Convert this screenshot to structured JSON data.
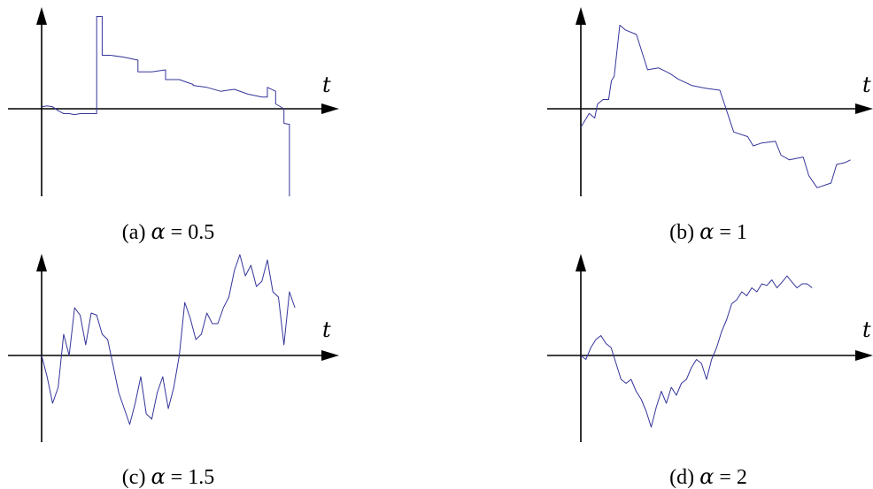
{
  "chart_data": [
    {
      "type": "line",
      "panel_label": "(a)",
      "alpha_symbol": "α",
      "alpha_value": "= 0.5",
      "xlabel": "t",
      "xlim": [
        0,
        1
      ],
      "ylim": [
        -1,
        1
      ],
      "x": [
        0,
        0.02,
        0.04,
        0.06,
        0.08,
        0.1,
        0.12,
        0.14,
        0.16,
        0.18,
        0.195,
        0.2,
        0.2,
        0.21,
        0.22,
        0.22,
        0.25,
        0.3,
        0.35,
        0.35,
        0.4,
        0.45,
        0.45,
        0.5,
        0.55,
        0.55,
        0.6,
        0.65,
        0.7,
        0.75,
        0.8,
        0.82,
        0.82,
        0.85,
        0.85,
        0.88,
        0.88,
        0.9,
        0.9
      ],
      "values": [
        0.02,
        0.03,
        0.02,
        -0.02,
        -0.05,
        -0.05,
        -0.06,
        -0.05,
        -0.05,
        -0.05,
        -0.05,
        -0.05,
        0.95,
        0.95,
        0.95,
        0.55,
        0.55,
        0.53,
        0.5,
        0.38,
        0.38,
        0.4,
        0.3,
        0.3,
        0.25,
        0.24,
        0.22,
        0.18,
        0.2,
        0.15,
        0.12,
        0.12,
        0.22,
        0.18,
        0.05,
        0.0,
        -0.15,
        -0.16,
        -0.9
      ]
    },
    {
      "type": "line",
      "panel_label": "(b)",
      "alpha_symbol": "α",
      "alpha_value": "= 1",
      "xlabel": "t",
      "xlim": [
        0,
        1
      ],
      "ylim": [
        -1,
        1
      ],
      "x": [
        0,
        0.02,
        0.03,
        0.05,
        0.06,
        0.08,
        0.1,
        0.11,
        0.12,
        0.14,
        0.16,
        0.2,
        0.24,
        0.28,
        0.32,
        0.35,
        0.4,
        0.45,
        0.5,
        0.52,
        0.55,
        0.6,
        0.62,
        0.65,
        0.7,
        0.72,
        0.75,
        0.8,
        0.82,
        0.85,
        0.9,
        0.92,
        0.95,
        0.97
      ],
      "values": [
        -0.2,
        -0.1,
        -0.05,
        -0.1,
        0.05,
        0.1,
        0.1,
        0.3,
        0.35,
        0.9,
        0.85,
        0.8,
        0.42,
        0.44,
        0.38,
        0.32,
        0.25,
        0.22,
        0.2,
        0.02,
        -0.25,
        -0.3,
        -0.4,
        -0.37,
        -0.35,
        -0.5,
        -0.55,
        -0.52,
        -0.72,
        -0.85,
        -0.8,
        -0.6,
        -0.58,
        -0.55
      ]
    },
    {
      "type": "line",
      "panel_label": "(c)",
      "alpha_symbol": "α",
      "alpha_value": "= 1.5",
      "xlabel": "t",
      "xlim": [
        0,
        1
      ],
      "ylim": [
        -1,
        1
      ],
      "x": [
        0,
        0.02,
        0.04,
        0.06,
        0.08,
        0.1,
        0.12,
        0.14,
        0.16,
        0.18,
        0.2,
        0.22,
        0.24,
        0.26,
        0.28,
        0.3,
        0.32,
        0.34,
        0.36,
        0.38,
        0.4,
        0.42,
        0.44,
        0.46,
        0.48,
        0.5,
        0.52,
        0.54,
        0.56,
        0.58,
        0.6,
        0.62,
        0.64,
        0.66,
        0.68,
        0.7,
        0.72,
        0.74,
        0.76,
        0.78,
        0.8,
        0.82,
        0.84,
        0.86,
        0.88,
        0.9,
        0.92
      ],
      "values": [
        0.0,
        -0.2,
        -0.45,
        -0.3,
        0.2,
        0.0,
        0.45,
        0.38,
        0.1,
        0.4,
        0.38,
        0.2,
        0.15,
        -0.1,
        -0.35,
        -0.5,
        -0.65,
        -0.45,
        -0.2,
        -0.55,
        -0.6,
        -0.35,
        -0.2,
        -0.5,
        -0.3,
        0.0,
        0.5,
        0.35,
        0.15,
        0.2,
        0.4,
        0.3,
        0.3,
        0.45,
        0.55,
        0.8,
        0.95,
        0.75,
        0.85,
        0.65,
        0.7,
        0.9,
        0.6,
        0.55,
        0.1,
        0.6,
        0.45
      ]
    },
    {
      "type": "line",
      "panel_label": "(d)",
      "alpha_symbol": "α",
      "alpha_value": "= 2",
      "xlabel": "t",
      "xlim": [
        0,
        1
      ],
      "ylim": [
        -1,
        1
      ],
      "x": [
        0,
        0.02,
        0.04,
        0.06,
        0.08,
        0.1,
        0.12,
        0.14,
        0.16,
        0.18,
        0.2,
        0.22,
        0.24,
        0.26,
        0.28,
        0.3,
        0.32,
        0.34,
        0.36,
        0.38,
        0.4,
        0.42,
        0.44,
        0.46,
        0.48,
        0.5,
        0.52,
        0.54,
        0.56,
        0.58,
        0.6,
        0.62,
        0.64,
        0.66,
        0.68,
        0.7,
        0.72,
        0.74,
        0.76,
        0.78,
        0.8,
        0.82,
        0.84,
        0.86,
        0.88,
        0.9,
        0.92
      ],
      "values": [
        0.0,
        -0.05,
        0.1,
        0.2,
        0.25,
        0.15,
        0.1,
        -0.1,
        -0.3,
        -0.35,
        -0.3,
        -0.45,
        -0.55,
        -0.7,
        -0.9,
        -0.65,
        -0.45,
        -0.6,
        -0.4,
        -0.5,
        -0.35,
        -0.3,
        -0.15,
        -0.05,
        -0.1,
        -0.3,
        -0.05,
        0.1,
        0.3,
        0.45,
        0.65,
        0.7,
        0.8,
        0.75,
        0.85,
        0.8,
        0.9,
        0.88,
        0.95,
        0.85,
        0.92,
        1.0,
        0.92,
        0.85,
        0.9,
        0.9,
        0.85
      ]
    }
  ]
}
